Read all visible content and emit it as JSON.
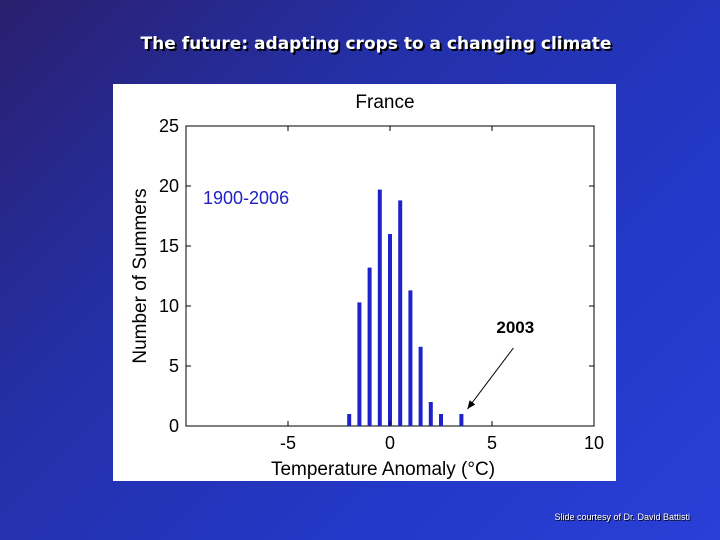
{
  "slide": {
    "title": "The future: adapting crops to a changing climate",
    "credit": "Slide courtesy of Dr. David Battisti"
  },
  "chart_data": {
    "type": "bar",
    "title": "France",
    "xlabel": "Temperature Anomaly (°C)",
    "ylabel": "Number of Summers",
    "xlim": [
      -10,
      10
    ],
    "ylim": [
      0,
      25
    ],
    "xticks": [
      -5,
      0,
      5,
      10
    ],
    "yticks": [
      0,
      5,
      10,
      15,
      20,
      25
    ],
    "grid": false,
    "inset_label": "1900-2006",
    "x": [
      -2.0,
      -1.5,
      -1.0,
      -0.5,
      0.0,
      0.5,
      1.0,
      1.5,
      2.0,
      2.5,
      3.5
    ],
    "values": [
      1,
      10.3,
      13.2,
      19.7,
      16,
      18.8,
      11.3,
      6.6,
      2,
      1,
      1
    ],
    "annotation": {
      "text": "2003",
      "x": 3.5,
      "y": 1
    },
    "bar_color": "#1e22c8"
  }
}
